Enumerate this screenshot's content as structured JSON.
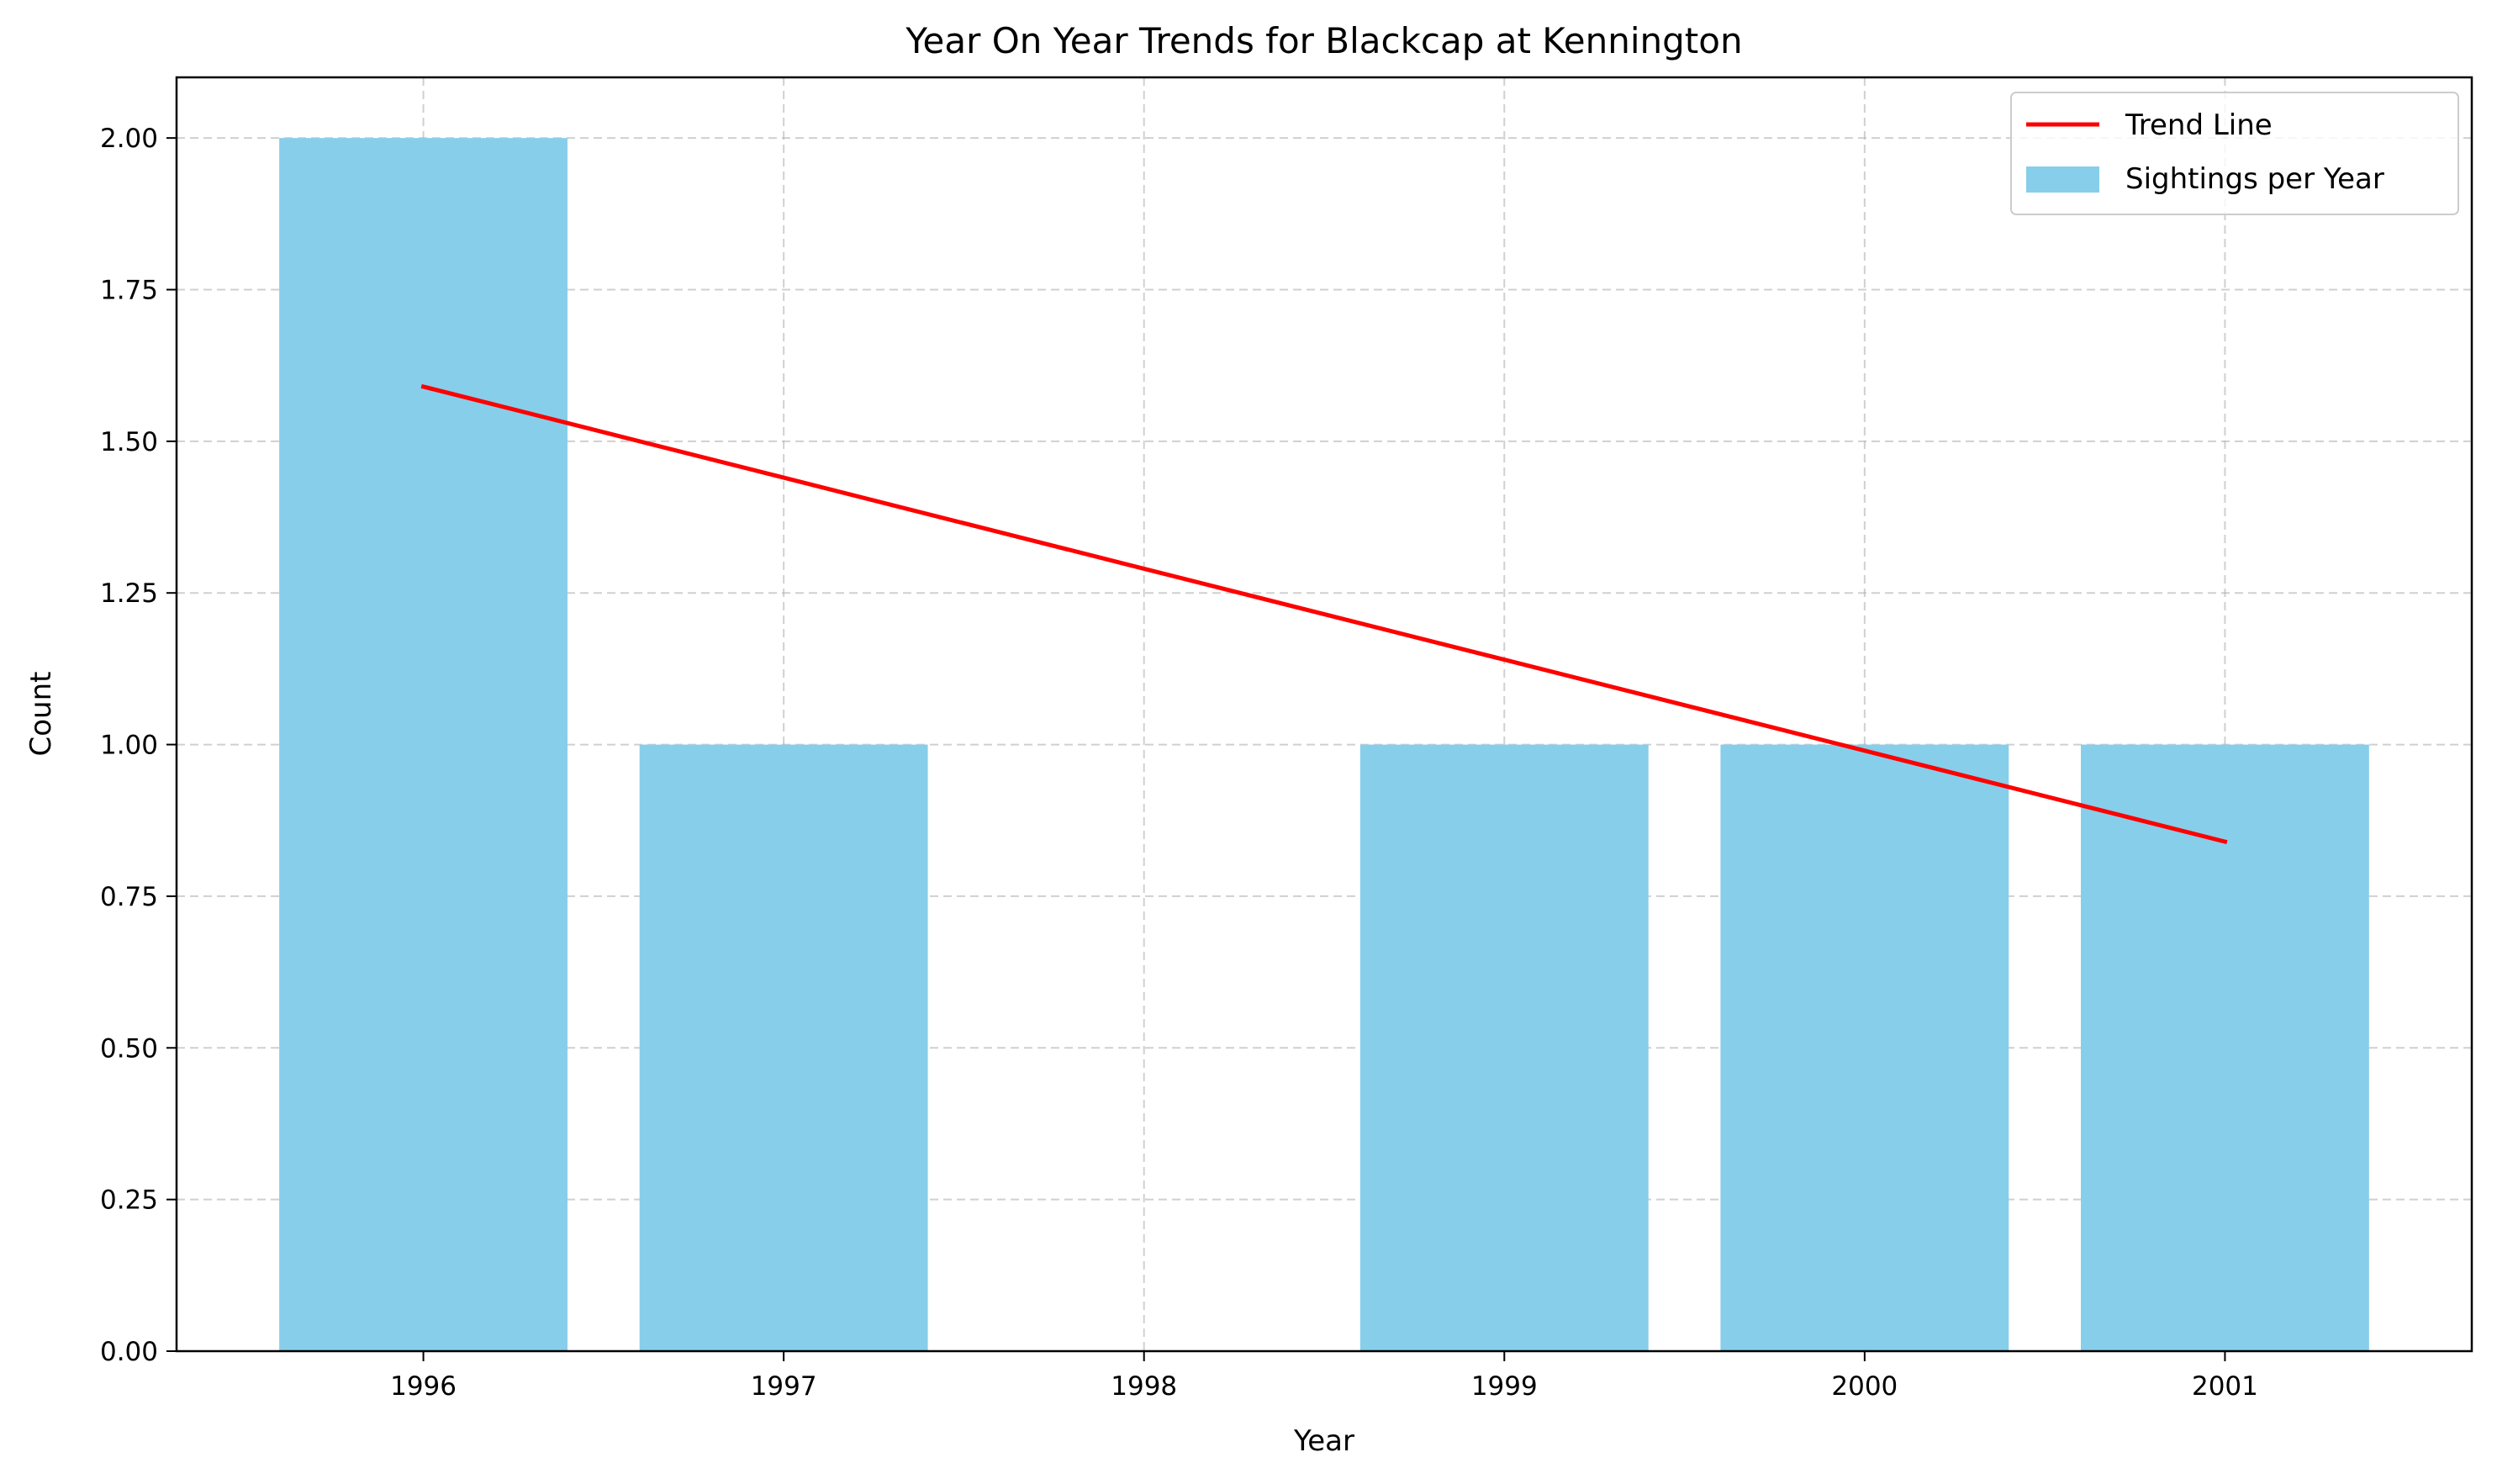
{
  "chart_data": {
    "type": "bar",
    "title": "Year On Year Trends for Blackcap at Kennington",
    "xlabel": "Year",
    "ylabel": "Count",
    "categories": [
      "1996",
      "1997",
      "1998",
      "1999",
      "2000",
      "2001"
    ],
    "x_ticks": [
      "1996",
      "1997",
      "1998",
      "1999",
      "2000",
      "2001"
    ],
    "y_ticks": [
      "0.00",
      "0.25",
      "0.50",
      "0.75",
      "1.00",
      "1.25",
      "1.50",
      "1.75",
      "2.00"
    ],
    "ylim": [
      0,
      2.1
    ],
    "grid": true,
    "legend_position": "top-right",
    "series": [
      {
        "name": "Sightings per Year",
        "kind": "bar",
        "color": "#87ceeb",
        "values": [
          2,
          1,
          0,
          1,
          1,
          1
        ]
      },
      {
        "name": "Trend Line",
        "kind": "line",
        "color": "#ff0000",
        "values": [
          1.59,
          1.44,
          1.29,
          1.14,
          0.99,
          0.84
        ]
      }
    ]
  }
}
